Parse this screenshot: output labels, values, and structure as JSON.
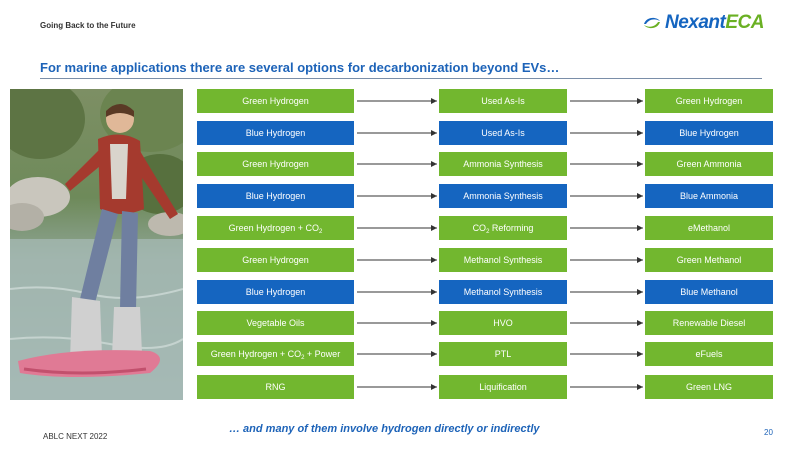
{
  "header": {
    "section_label": "Going Back to the Future",
    "logo": {
      "name": "Nexant",
      "suffix": "ECA",
      "icon": "nexant-swirl-icon",
      "color_primary": "#1565c0",
      "color_accent": "#6ab023"
    }
  },
  "title": "For marine applications there are several options for decarbonization beyond EVs…",
  "photo": {
    "icon": "hoverboard-photo"
  },
  "colors": {
    "green": "#72b72f",
    "blue": "#1565c0",
    "arrow": "#333333"
  },
  "rows": [
    {
      "source": {
        "text": "Green Hydrogen",
        "color": "green"
      },
      "process": {
        "text": "Used As-Is",
        "color": "green"
      },
      "product": {
        "text": "Green Hydrogen",
        "color": "green"
      }
    },
    {
      "source": {
        "text": "Blue Hydrogen",
        "color": "blue"
      },
      "process": {
        "text": "Used As-Is",
        "color": "blue"
      },
      "product": {
        "text": "Blue Hydrogen",
        "color": "blue"
      }
    },
    {
      "source": {
        "text": "Green Hydrogen",
        "color": "green"
      },
      "process": {
        "text": "Ammonia Synthesis",
        "color": "green"
      },
      "product": {
        "text": "Green Ammonia",
        "color": "green"
      }
    },
    {
      "source": {
        "text": "Blue Hydrogen",
        "color": "blue"
      },
      "process": {
        "text": "Ammonia Synthesis",
        "color": "blue"
      },
      "product": {
        "text": "Blue Ammonia",
        "color": "blue"
      }
    },
    {
      "source": {
        "text": "Green Hydrogen + CO",
        "sub": "2",
        "text_after": "",
        "color": "green"
      },
      "process": {
        "text": "CO",
        "sub": "2",
        "text_after": " Reforming",
        "color": "green"
      },
      "product": {
        "text": "eMethanol",
        "color": "green"
      }
    },
    {
      "source": {
        "text": "Green Hydrogen",
        "color": "green"
      },
      "process": {
        "text": "Methanol Synthesis",
        "color": "green"
      },
      "product": {
        "text": "Green Methanol",
        "color": "green"
      }
    },
    {
      "source": {
        "text": "Blue Hydrogen",
        "color": "blue"
      },
      "process": {
        "text": "Methanol Synthesis",
        "color": "blue"
      },
      "product": {
        "text": "Blue Methanol",
        "color": "blue"
      }
    },
    {
      "source": {
        "text": "Vegetable Oils",
        "color": "green"
      },
      "process": {
        "text": "HVO",
        "color": "green"
      },
      "product": {
        "text": "Renewable Diesel",
        "color": "green"
      }
    },
    {
      "source": {
        "text": "Green Hydrogen + CO",
        "sub": "2",
        "text_after": " + Power",
        "color": "green"
      },
      "process": {
        "text": "PTL",
        "color": "green"
      },
      "product": {
        "text": "eFuels",
        "color": "green"
      }
    },
    {
      "source": {
        "text": "RNG",
        "color": "green"
      },
      "process": {
        "text": "Liquification",
        "color": "green"
      },
      "product": {
        "text": "Green LNG",
        "color": "green"
      }
    }
  ],
  "footer": {
    "left": "ABLC NEXT 2022",
    "note": "… and many of them involve hydrogen directly or indirectly",
    "page": "20"
  }
}
